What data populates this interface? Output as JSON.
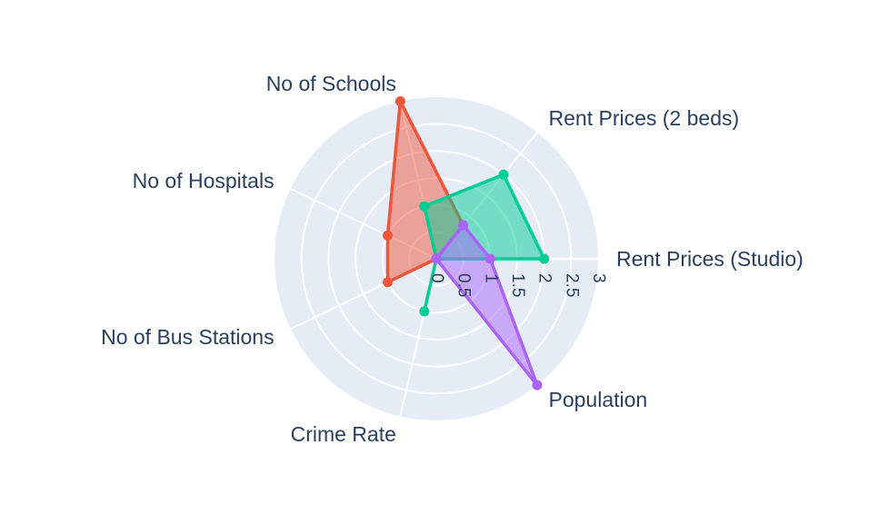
{
  "chart_data": {
    "type": "radar",
    "axes": [
      "Rent Prices (Studio)",
      "Rent Prices (2 beds)",
      "No of Schools",
      "No of Hospitals",
      "No of Bus Stations",
      "Crime Rate",
      "Population"
    ],
    "radial_range": [
      0,
      3
    ],
    "radial_ticks": [
      "0",
      "0.5",
      "1",
      "1.5",
      "2",
      "2.5",
      "3"
    ],
    "grid": true,
    "legend": "none",
    "series": [
      {
        "color": "#ef553b",
        "values": [
          0,
          0.8,
          3.0,
          1.0,
          1.0,
          0,
          0
        ]
      },
      {
        "color": "#00cc96",
        "values": [
          2.0,
          2.0,
          1.0,
          0,
          0,
          1.0,
          0
        ]
      },
      {
        "color": "#ab63fa",
        "values": [
          1.0,
          0.8,
          0,
          0,
          0,
          0,
          3.0
        ]
      }
    ]
  }
}
